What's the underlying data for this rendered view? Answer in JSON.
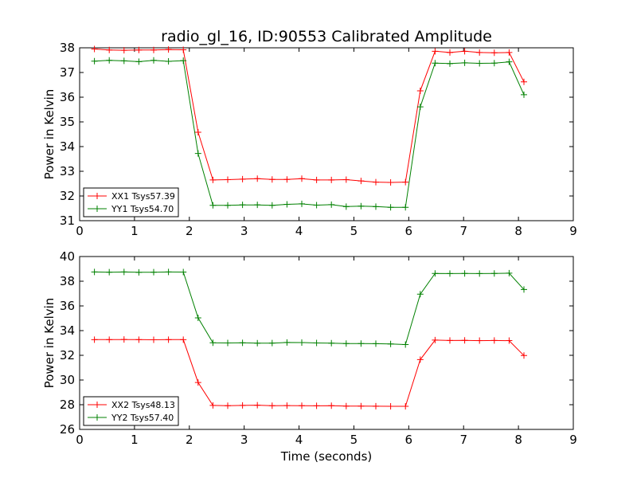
{
  "chart_data": [
    {
      "type": "line",
      "title": "radio_gl_16, ID:90553 Calibrated Amplitude",
      "xlabel": "",
      "ylabel": "Power in Kelvin",
      "xlim": [
        0,
        9
      ],
      "ylim": [
        31,
        38
      ],
      "xticks": [
        "0",
        "1",
        "2",
        "3",
        "4",
        "5",
        "6",
        "7",
        "8",
        "9"
      ],
      "yticks": [
        "31",
        "32",
        "33",
        "34",
        "35",
        "36",
        "37",
        "38"
      ],
      "legend_position": "lower-left",
      "x": [
        0.27,
        0.54,
        0.81,
        1.08,
        1.35,
        1.62,
        1.89,
        2.16,
        2.43,
        2.7,
        2.97,
        3.24,
        3.51,
        3.78,
        4.05,
        4.32,
        4.59,
        4.86,
        5.13,
        5.4,
        5.67,
        5.94,
        6.21,
        6.48,
        6.75,
        7.02,
        7.29,
        7.56,
        7.83,
        8.1
      ],
      "series": [
        {
          "name": "XX1 Tsys57.39",
          "color": "#ff0000",
          "values": [
            37.95,
            37.91,
            37.9,
            37.91,
            37.91,
            37.93,
            37.92,
            34.58,
            32.65,
            32.66,
            32.68,
            32.7,
            32.67,
            32.67,
            32.7,
            32.65,
            32.65,
            32.66,
            32.61,
            32.56,
            32.55,
            32.56,
            36.26,
            37.86,
            37.81,
            37.86,
            37.81,
            37.8,
            37.81,
            36.62
          ]
        },
        {
          "name": "YY1 Tsys54.70",
          "color": "#008000",
          "values": [
            37.46,
            37.49,
            37.47,
            37.44,
            37.49,
            37.45,
            37.48,
            33.72,
            31.62,
            31.62,
            31.64,
            31.64,
            31.62,
            31.66,
            31.68,
            31.63,
            31.65,
            31.57,
            31.59,
            31.57,
            31.54,
            31.54,
            35.61,
            37.38,
            37.36,
            37.39,
            37.37,
            37.38,
            37.43,
            36.1
          ]
        }
      ]
    },
    {
      "type": "line",
      "title": "",
      "xlabel": "Time (seconds)",
      "ylabel": "Power in Kelvin",
      "xlim": [
        0,
        9
      ],
      "ylim": [
        26,
        40
      ],
      "xticks": [
        "0",
        "1",
        "2",
        "3",
        "4",
        "5",
        "6",
        "7",
        "8",
        "9"
      ],
      "yticks": [
        "26",
        "28",
        "30",
        "32",
        "34",
        "36",
        "38",
        "40"
      ],
      "legend_position": "lower-left",
      "x": [
        0.27,
        0.54,
        0.81,
        1.08,
        1.35,
        1.62,
        1.89,
        2.16,
        2.43,
        2.7,
        2.97,
        3.24,
        3.51,
        3.78,
        4.05,
        4.32,
        4.59,
        4.86,
        5.13,
        5.4,
        5.67,
        5.94,
        6.21,
        6.48,
        6.75,
        7.02,
        7.29,
        7.56,
        7.83,
        8.1
      ],
      "series": [
        {
          "name": "XX2 Tsys48.13",
          "color": "#ff0000",
          "values": [
            33.27,
            33.27,
            33.28,
            33.27,
            33.26,
            33.27,
            33.27,
            29.8,
            27.94,
            27.92,
            27.94,
            27.96,
            27.92,
            27.93,
            27.92,
            27.91,
            27.92,
            27.89,
            27.89,
            27.88,
            27.87,
            27.87,
            31.65,
            33.23,
            33.2,
            33.21,
            33.19,
            33.2,
            33.19,
            31.98
          ]
        },
        {
          "name": "YY2 Tsys57.40",
          "color": "#008000",
          "values": [
            38.75,
            38.73,
            38.75,
            38.72,
            38.73,
            38.75,
            38.74,
            35.03,
            33.02,
            33.0,
            33.01,
            32.98,
            32.99,
            33.04,
            33.03,
            33.0,
            32.98,
            32.95,
            32.95,
            32.94,
            32.92,
            32.87,
            36.95,
            38.63,
            38.62,
            38.63,
            38.62,
            38.63,
            38.65,
            37.33
          ]
        }
      ]
    }
  ]
}
